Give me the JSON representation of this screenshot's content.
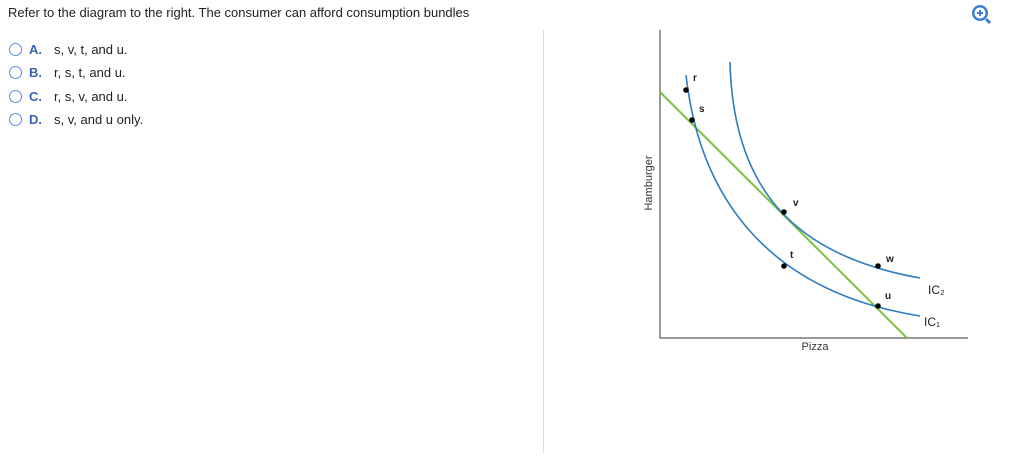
{
  "question": "Refer to the diagram to the right. The consumer can afford consumption bundles",
  "options": [
    {
      "letter": "A.",
      "text": "s, v, t, and u."
    },
    {
      "letter": "B.",
      "text": "r, s, t, and u."
    },
    {
      "letter": "C.",
      "text": "r, s, v, and u."
    },
    {
      "letter": "D.",
      "text": "s, v, and u only."
    }
  ],
  "diagram": {
    "y_axis_label": "Hamburger",
    "x_axis_label": "Pizza",
    "points": [
      "r",
      "s",
      "v",
      "t",
      "w",
      "u"
    ],
    "curves": [
      "IC₂",
      "IC₁"
    ]
  }
}
